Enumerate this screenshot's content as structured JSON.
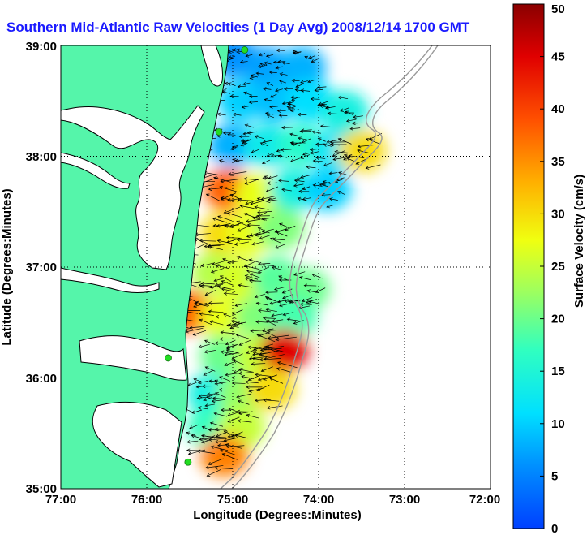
{
  "chart_data": {
    "type": "heatmap",
    "title": "Southern Mid-Atlantic Raw Velocities (1 Day Avg) 2008/12/14 1700 GMT",
    "xlabel": "Longitude (Degrees:Minutes)",
    "ylabel": "Latitude (Degrees:Minutes)",
    "x_ticks": [
      "77:00",
      "76:00",
      "75:00",
      "74:00",
      "73:00",
      "72:00"
    ],
    "x_tick_values": [
      -77,
      -76,
      -75,
      -74,
      -73,
      -72
    ],
    "y_ticks": [
      "35:00",
      "36:00",
      "37:00",
      "38:00",
      "39:00"
    ],
    "y_tick_values": [
      35,
      36,
      37,
      38,
      39
    ],
    "xlim": [
      -77,
      -72
    ],
    "ylim": [
      35,
      39
    ],
    "grid": true,
    "colorbar": {
      "label": "Surface Velocity (cm/s)",
      "range": [
        0,
        50
      ],
      "ticks": [
        "0",
        "5",
        "10",
        "15",
        "20",
        "25",
        "30",
        "35",
        "40",
        "45",
        "50"
      ],
      "tick_values": [
        0,
        5,
        10,
        15,
        20,
        25,
        30,
        35,
        40,
        45,
        50
      ],
      "colormap": "jet"
    },
    "colors": {
      "land": "#55f5aa",
      "coast": "#000000",
      "shelf_isobath": "#999999",
      "title": "#1a1aff",
      "stations": "#22dd22"
    },
    "stations": [
      {
        "lon": -74.86,
        "lat": 38.96
      },
      {
        "lon": -75.16,
        "lat": 38.22
      },
      {
        "lon": -75.75,
        "lat": 36.18
      },
      {
        "lon": -75.52,
        "lat": 35.24
      }
    ],
    "coverage_cells": [
      {
        "lon": -75.0,
        "lat": 38.9,
        "speed": 6
      },
      {
        "lon": -74.6,
        "lat": 38.8,
        "speed": 7
      },
      {
        "lon": -74.2,
        "lat": 38.8,
        "speed": 8
      },
      {
        "lon": -74.9,
        "lat": 38.5,
        "speed": 10
      },
      {
        "lon": -74.5,
        "lat": 38.5,
        "speed": 9
      },
      {
        "lon": -74.1,
        "lat": 38.5,
        "speed": 11
      },
      {
        "lon": -73.7,
        "lat": 38.4,
        "speed": 14
      },
      {
        "lon": -75.0,
        "lat": 38.1,
        "speed": 8
      },
      {
        "lon": -74.6,
        "lat": 38.1,
        "speed": 13
      },
      {
        "lon": -74.2,
        "lat": 38.1,
        "speed": 16
      },
      {
        "lon": -73.8,
        "lat": 38.05,
        "speed": 12
      },
      {
        "lon": -73.5,
        "lat": 38.05,
        "speed": 30
      },
      {
        "lon": -75.05,
        "lat": 37.7,
        "speed": 38
      },
      {
        "lon": -74.7,
        "lat": 37.65,
        "speed": 27
      },
      {
        "lon": -74.3,
        "lat": 37.7,
        "speed": 14
      },
      {
        "lon": -73.9,
        "lat": 37.7,
        "speed": 10
      },
      {
        "lon": -75.1,
        "lat": 37.3,
        "speed": 30
      },
      {
        "lon": -74.8,
        "lat": 37.3,
        "speed": 27
      },
      {
        "lon": -74.45,
        "lat": 37.35,
        "speed": 21
      },
      {
        "lon": -75.2,
        "lat": 36.95,
        "speed": 24
      },
      {
        "lon": -74.9,
        "lat": 36.9,
        "speed": 26
      },
      {
        "lon": -74.5,
        "lat": 36.9,
        "speed": 19
      },
      {
        "lon": -74.15,
        "lat": 36.8,
        "speed": 20
      },
      {
        "lon": -75.5,
        "lat": 36.6,
        "speed": 38
      },
      {
        "lon": -75.1,
        "lat": 36.55,
        "speed": 27
      },
      {
        "lon": -74.7,
        "lat": 36.55,
        "speed": 21
      },
      {
        "lon": -74.3,
        "lat": 36.55,
        "speed": 18
      },
      {
        "lon": -75.1,
        "lat": 36.2,
        "speed": 20
      },
      {
        "lon": -74.7,
        "lat": 36.2,
        "speed": 25
      },
      {
        "lon": -74.4,
        "lat": 36.25,
        "speed": 45
      },
      {
        "lon": -75.25,
        "lat": 35.85,
        "speed": 14
      },
      {
        "lon": -74.9,
        "lat": 35.85,
        "speed": 22
      },
      {
        "lon": -74.55,
        "lat": 35.9,
        "speed": 30
      },
      {
        "lon": -75.25,
        "lat": 35.55,
        "speed": 17
      },
      {
        "lon": -74.9,
        "lat": 35.55,
        "speed": 25
      },
      {
        "lon": -75.1,
        "lat": 35.3,
        "speed": 36
      }
    ]
  }
}
